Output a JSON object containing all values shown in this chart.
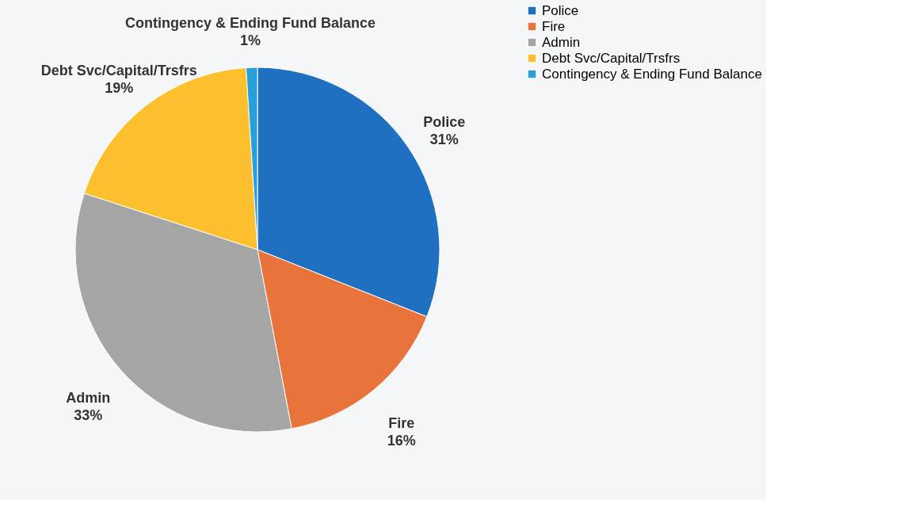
{
  "chart_data": {
    "type": "pie",
    "categories": [
      "Police",
      "Fire",
      "Admin",
      "Debt Svc/Capital/Trsfrs",
      "Contingency & Ending Fund Balance"
    ],
    "values": [
      31,
      16,
      33,
      19,
      1
    ],
    "colors": [
      "#1f70c1",
      "#e8743b",
      "#a5a5a5",
      "#fcbf2e",
      "#2a9fd8"
    ],
    "value_labels": [
      "31%",
      "16%",
      "33%",
      "19%",
      "1%"
    ],
    "legend": "right"
  }
}
